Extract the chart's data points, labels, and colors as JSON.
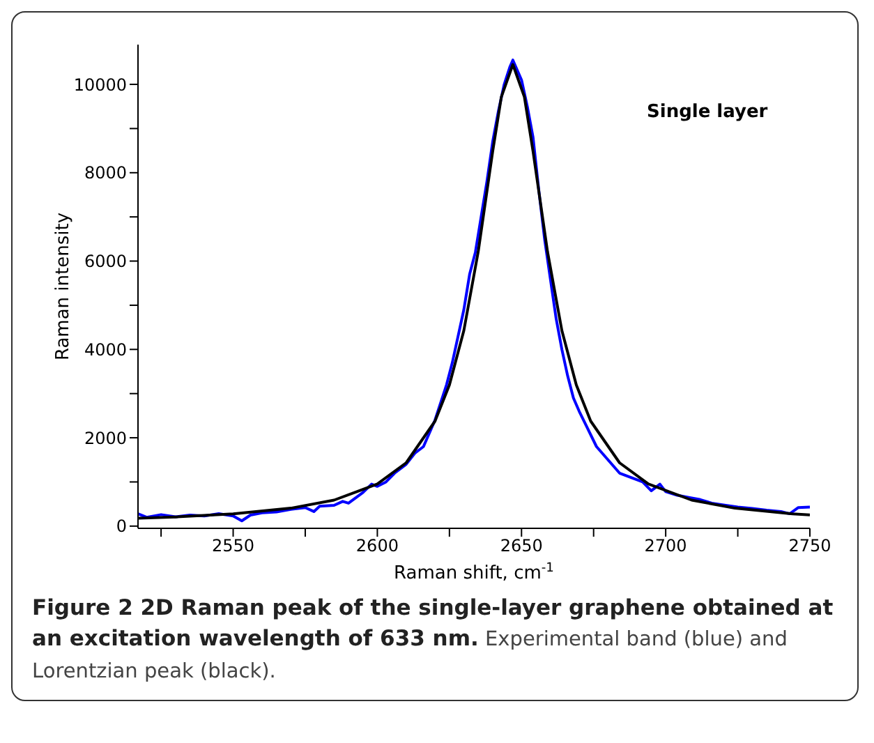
{
  "chart_data": {
    "type": "line",
    "xlabel": "Raman shift, cm$^{-1}$",
    "ylabel": "Raman intensity",
    "annotations": [
      "Single layer",
      "Figure 2 2D Raman peak of the single-layer graphene obtained at an excitation wavelength of 633 nm.",
      "Experimental band (blue) and Lorentzian peak (black)."
    ],
    "xlim": [
      2517,
      2750
    ],
    "ylim": [
      -50,
      10900
    ],
    "xticks": [
      {
        "value": 2525,
        "label": null
      },
      2550,
      {
        "value": 2575,
        "label": null
      },
      2600,
      {
        "value": 2625,
        "label": null
      },
      2650,
      {
        "value": 2675,
        "label": null
      },
      2700,
      {
        "value": 2725,
        "label": null
      },
      2750
    ],
    "yticks": [
      0,
      {
        "value": 1000,
        "label": null
      },
      2000,
      {
        "value": 3000,
        "label": null
      },
      4000,
      {
        "value": 5000,
        "label": null
      },
      6000,
      {
        "value": 7000,
        "label": null
      },
      8000,
      {
        "value": 9000,
        "label": null
      },
      10000
    ],
    "grid": false,
    "legend": false,
    "marker": "none",
    "line_style": "solid",
    "series": [
      {
        "color": "#0000ff",
        "x": [
          2517,
          2520,
          2525,
          2530,
          2535,
          2540,
          2545,
          2550,
          2553,
          2556,
          2560,
          2565,
          2570,
          2575,
          2578,
          2580,
          2585,
          2588,
          2590,
          2595,
          2598,
          2600,
          2603,
          2606,
          2610,
          2613,
          2616,
          2618,
          2620,
          2622,
          2624,
          2626,
          2628,
          2630,
          2632,
          2634,
          2636,
          2638,
          2640,
          2642,
          2644,
          2646,
          2647,
          2648,
          2650,
          2652,
          2654,
          2656,
          2658,
          2660,
          2662,
          2664,
          2666,
          2668,
          2670,
          2673,
          2676,
          2680,
          2684,
          2688,
          2692,
          2695,
          2698,
          2700,
          2704,
          2708,
          2712,
          2716,
          2720,
          2725,
          2730,
          2735,
          2740,
          2743,
          2746,
          2750
        ],
        "values": [
          280,
          200,
          260,
          210,
          250,
          230,
          280,
          230,
          120,
          250,
          300,
          320,
          380,
          420,
          330,
          450,
          470,
          560,
          520,
          760,
          950,
          900,
          1000,
          1200,
          1400,
          1650,
          1800,
          2100,
          2400,
          2800,
          3200,
          3700,
          4300,
          4900,
          5700,
          6200,
          7000,
          7800,
          8700,
          9400,
          10000,
          10400,
          10550,
          10400,
          10100,
          9500,
          8800,
          7600,
          6500,
          5600,
          4700,
          4000,
          3400,
          2900,
          2600,
          2200,
          1800,
          1500,
          1200,
          1100,
          1000,
          800,
          950,
          780,
          700,
          650,
          600,
          520,
          480,
          430,
          400,
          360,
          330,
          280,
          420,
          430
        ]
      },
      {
        "color": "#000000",
        "x": [
          2517,
          2530,
          2550,
          2570,
          2585,
          2600,
          2610,
          2620,
          2625,
          2630,
          2635,
          2640,
          2643,
          2647,
          2651,
          2654,
          2659,
          2664,
          2669,
          2674,
          2684,
          2694,
          2709,
          2724,
          2744,
          2750
        ],
        "values": [
          178,
          207,
          277,
          406,
          589,
          953,
          1433,
          2376,
          3197,
          4427,
          6219,
          8482,
          9714,
          10450,
          9714,
          8482,
          6219,
          4427,
          3197,
          2376,
          1433,
          953,
          589,
          406,
          277,
          252
        ]
      }
    ]
  }
}
